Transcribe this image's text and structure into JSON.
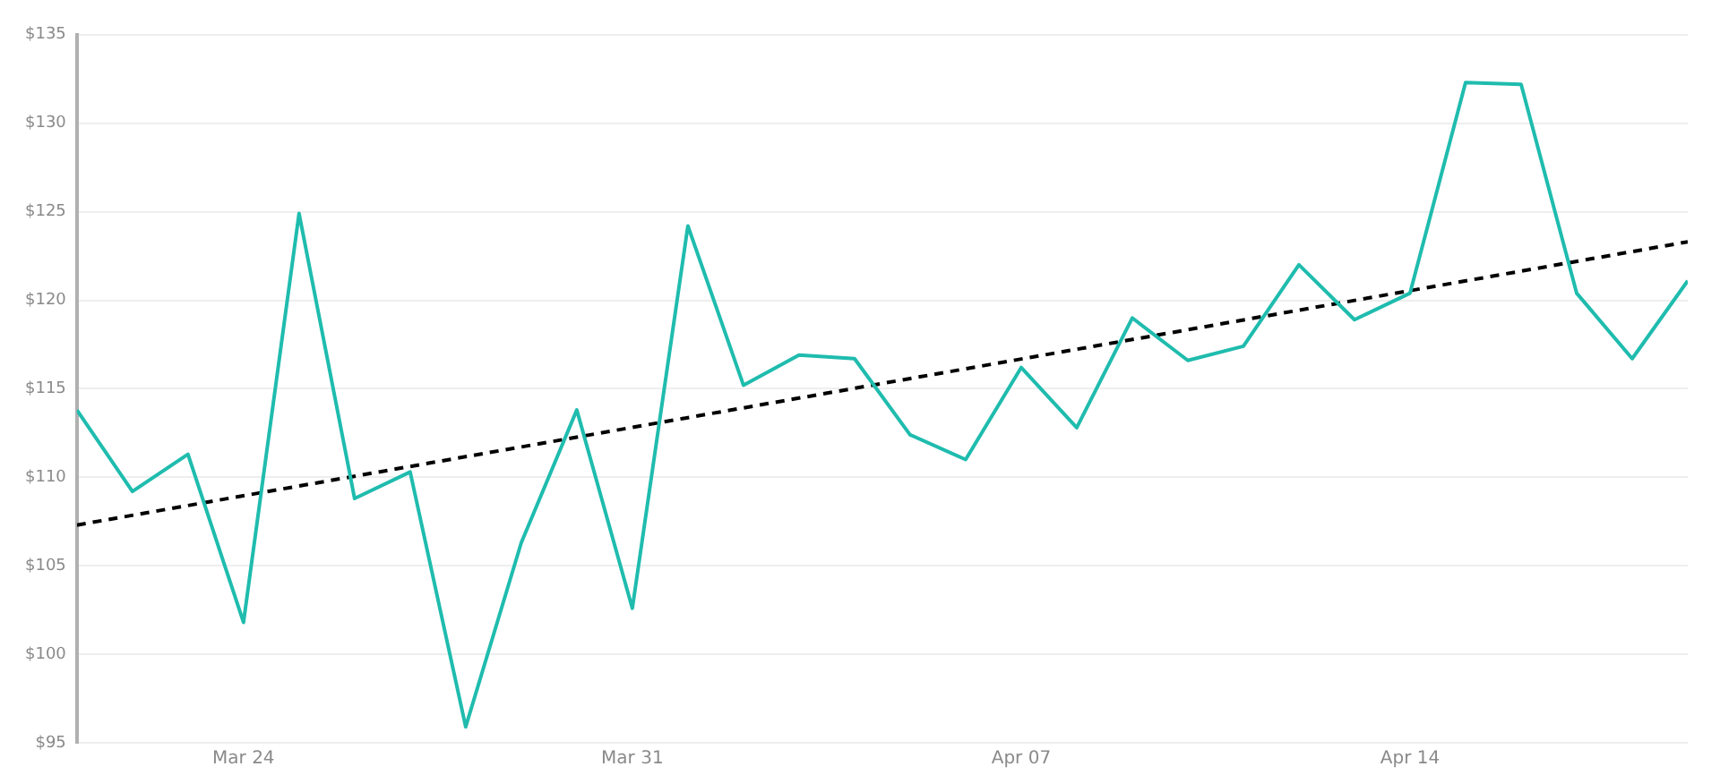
{
  "chart_data": {
    "type": "line",
    "x": [
      "--03-21",
      "--03-22",
      "--03-23",
      "--03-24",
      "--03-25",
      "--03-26",
      "--03-27",
      "--03-28",
      "--03-29",
      "--03-30",
      "--03-31",
      "--04-01",
      "--04-02",
      "--04-03",
      "--04-04",
      "--04-05",
      "--04-06",
      "--04-07",
      "--04-08",
      "--04-09",
      "--04-10",
      "--04-11",
      "--04-12",
      "--04-13",
      "--04-14",
      "--04-15",
      "--04-16",
      "--04-17",
      "--04-18",
      "--04-19"
    ],
    "series": [
      {
        "color": "#1fbcae",
        "values": [
          113.8,
          109.2,
          111.3,
          101.8,
          124.9,
          108.8,
          110.3,
          95.9,
          106.3,
          113.8,
          102.6,
          124.2,
          115.2,
          116.9,
          116.7,
          112.4,
          111.0,
          116.2,
          112.8,
          119.0,
          116.6,
          117.4,
          122.0,
          118.9,
          120.4,
          132.3,
          132.2,
          120.4,
          116.7,
          121.1
        ]
      },
      {
        "type": "line",
        "line_style": "dashed",
        "color": "#000000",
        "x": [
          "--03-21",
          "--04-19"
        ],
        "values": [
          107.3,
          123.3
        ]
      }
    ],
    "xlim": [
      "--03-21",
      "--04-19"
    ],
    "xticks": [
      {
        "value": "--03-24",
        "label": "Mar 24"
      },
      {
        "value": "--03-31",
        "label": "Mar 31"
      },
      {
        "value": "--04-07",
        "label": "Apr 07"
      },
      {
        "value": "--04-14",
        "label": "Apr 14"
      }
    ],
    "ylim": [
      95,
      135
    ],
    "yticks": [
      {
        "value": 95,
        "label": "$95"
      },
      {
        "value": 100,
        "label": "$100"
      },
      {
        "value": 105,
        "label": "$105"
      },
      {
        "value": 110,
        "label": "$110"
      },
      {
        "value": 115,
        "label": "$115"
      },
      {
        "value": 120,
        "label": "$120"
      },
      {
        "value": 125,
        "label": "$125"
      },
      {
        "value": 130,
        "label": "$130"
      },
      {
        "value": 135,
        "label": "$135"
      }
    ],
    "grid": "y",
    "legend": false,
    "marker": "none"
  }
}
